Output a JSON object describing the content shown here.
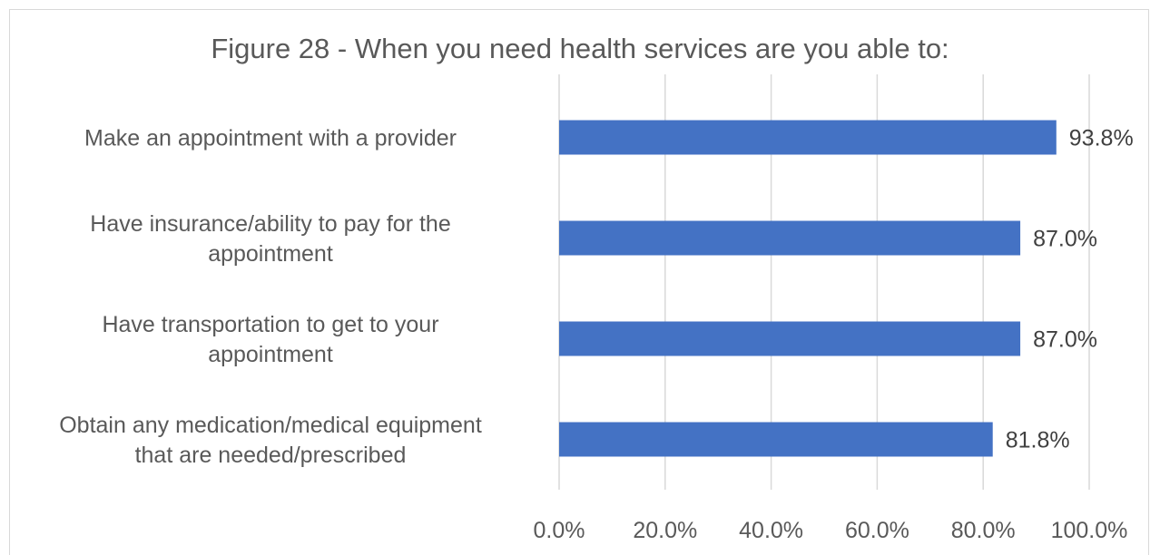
{
  "chart_data": {
    "type": "bar",
    "orientation": "horizontal",
    "title": "Figure 28 - When you need health services are you able to:",
    "categories": [
      [
        "Make an appointment with a provider"
      ],
      [
        "Have insurance/ability to pay for the",
        "appointment"
      ],
      [
        "Have transportation to get to your",
        "appointment"
      ],
      [
        "Obtain any medication/medical equipment",
        "that are needed/prescribed"
      ]
    ],
    "values": [
      93.8,
      87.0,
      87.0,
      81.8
    ],
    "data_labels": [
      "93.8%",
      "87.0%",
      "87.0%",
      "81.8%"
    ],
    "xlim": [
      0,
      100
    ],
    "x_ticks": [
      0,
      20,
      40,
      60,
      80,
      100
    ],
    "x_tick_labels": [
      "0.0%",
      "20.0%",
      "40.0%",
      "60.0%",
      "80.0%",
      "100.0%"
    ],
    "grid": true,
    "legend": "none",
    "bar_color": "#4472C4"
  }
}
